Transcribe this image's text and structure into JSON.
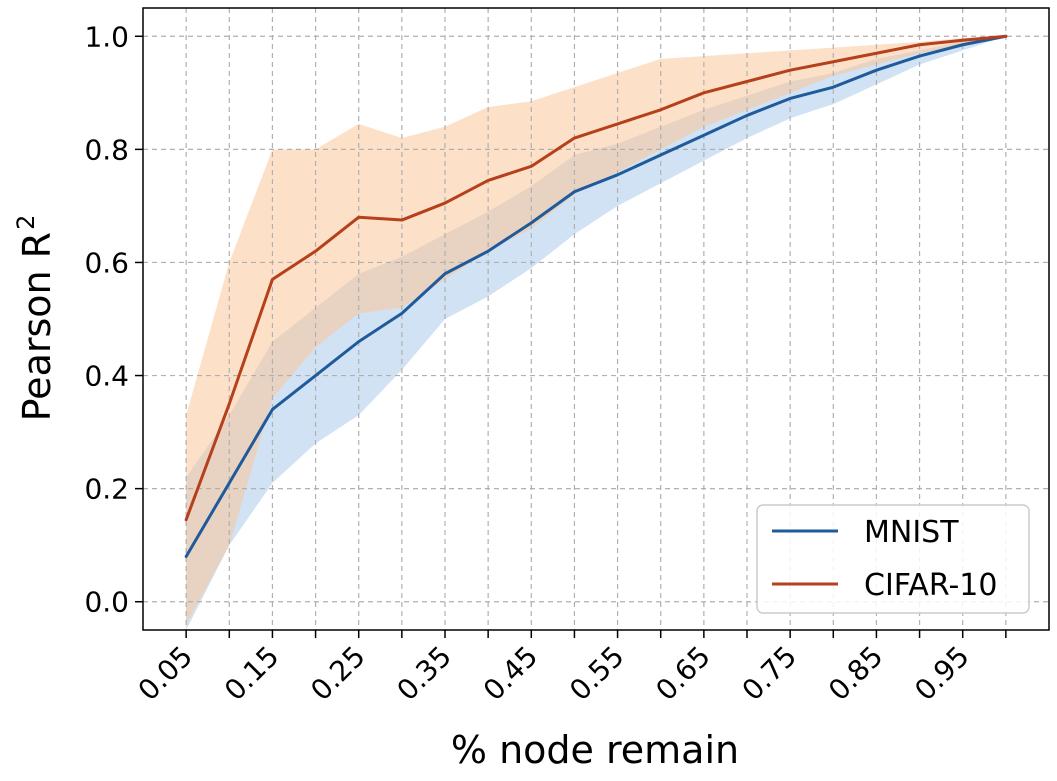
{
  "chart_data": {
    "type": "line",
    "xlabel": "% node remain",
    "ylabel_text": "Pearson R",
    "ylabel_sup": "2",
    "x": [
      0.05,
      0.1,
      0.15,
      0.2,
      0.25,
      0.3,
      0.35,
      0.4,
      0.45,
      0.5,
      0.55,
      0.6,
      0.65,
      0.7,
      0.75,
      0.8,
      0.85,
      0.9,
      0.95,
      1.0
    ],
    "x_tick_labels": [
      "0.05",
      "0.15",
      "0.25",
      "0.35",
      "0.45",
      "0.55",
      "0.65",
      "0.75",
      "0.85",
      "0.95"
    ],
    "x_tick_values": [
      0.05,
      0.15,
      0.25,
      0.35,
      0.45,
      0.55,
      0.65,
      0.75,
      0.85,
      0.95
    ],
    "xlim": [
      0.0,
      1.05
    ],
    "y_tick_labels": [
      "0.0",
      "0.2",
      "0.4",
      "0.6",
      "0.8",
      "1.0"
    ],
    "y_tick_values": [
      0.0,
      0.2,
      0.4,
      0.6,
      0.8,
      1.0
    ],
    "ylim": [
      -0.05,
      1.05
    ],
    "grid": true,
    "legend_position": "bottom-right",
    "series": [
      {
        "name": "MNIST",
        "color": "#1f5a9a",
        "band_color": "#a9cbea",
        "values": [
          0.08,
          0.21,
          0.34,
          0.4,
          0.46,
          0.51,
          0.58,
          0.62,
          0.67,
          0.725,
          0.755,
          0.79,
          0.825,
          0.86,
          0.89,
          0.91,
          0.94,
          0.965,
          0.985,
          1.0
        ],
        "lower": [
          -0.05,
          0.1,
          0.21,
          0.28,
          0.33,
          0.41,
          0.5,
          0.54,
          0.59,
          0.65,
          0.7,
          0.74,
          0.78,
          0.82,
          0.855,
          0.88,
          0.915,
          0.95,
          0.975,
          1.0
        ],
        "upper": [
          0.22,
          0.33,
          0.46,
          0.52,
          0.58,
          0.61,
          0.65,
          0.69,
          0.735,
          0.79,
          0.81,
          0.84,
          0.87,
          0.895,
          0.92,
          0.935,
          0.96,
          0.975,
          0.99,
          1.0
        ]
      },
      {
        "name": "CIFAR-10",
        "color": "#b5401c",
        "band_color": "#fbc79a",
        "values": [
          0.145,
          0.35,
          0.57,
          0.62,
          0.68,
          0.675,
          0.705,
          0.745,
          0.77,
          0.82,
          0.845,
          0.87,
          0.9,
          0.92,
          0.94,
          0.955,
          0.97,
          0.985,
          0.993,
          1.0
        ],
        "lower": [
          -0.04,
          0.1,
          0.36,
          0.45,
          0.51,
          0.52,
          0.57,
          0.62,
          0.66,
          0.72,
          0.76,
          0.8,
          0.84,
          0.87,
          0.9,
          0.93,
          0.95,
          0.97,
          0.985,
          1.0
        ],
        "upper": [
          0.33,
          0.6,
          0.8,
          0.8,
          0.845,
          0.82,
          0.84,
          0.875,
          0.885,
          0.91,
          0.935,
          0.96,
          0.965,
          0.97,
          0.975,
          0.98,
          0.985,
          0.99,
          0.997,
          1.0
        ]
      }
    ]
  }
}
